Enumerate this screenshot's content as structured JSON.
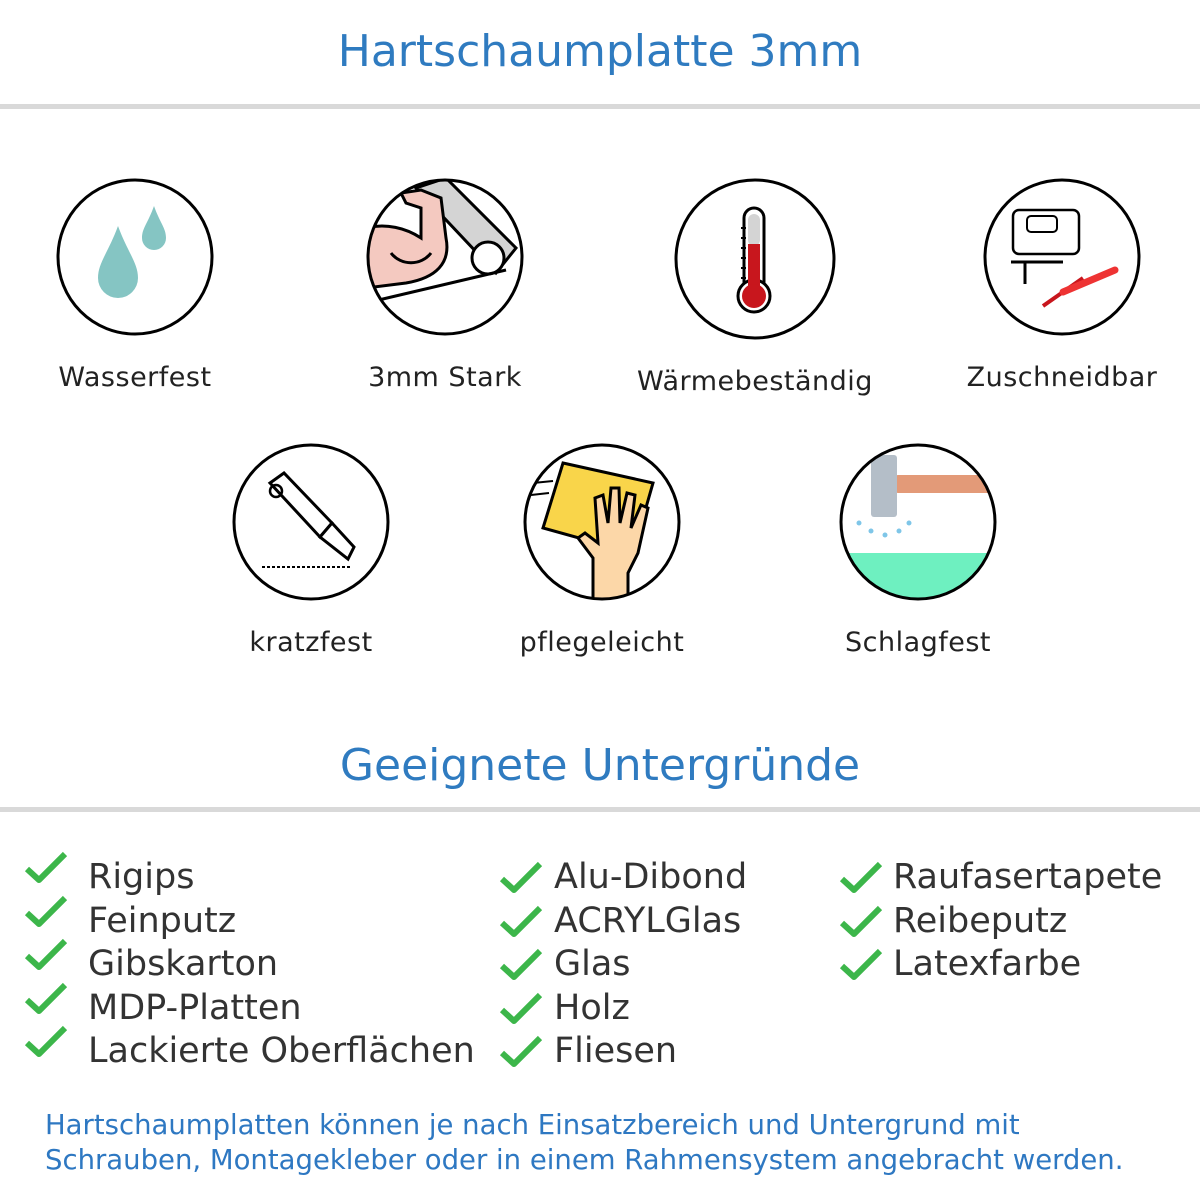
{
  "header": {
    "title": "Hartschaumplatte 3mm"
  },
  "features": [
    {
      "label": "Wasserfest",
      "icon": "water-drops-icon"
    },
    {
      "label": "3mm Stark",
      "icon": "strong-arm-icon"
    },
    {
      "label": "Wärmebeständig",
      "icon": "thermometer-icon"
    },
    {
      "label": "Zuschneidbar",
      "icon": "jigsaw-knife-icon"
    },
    {
      "label": "kratzfest",
      "icon": "cutter-knife-icon"
    },
    {
      "label": "pflegeleicht",
      "icon": "cleaning-sponge-hand-icon"
    },
    {
      "label": "Schlagfest",
      "icon": "hammer-impact-icon"
    }
  ],
  "surfaces": {
    "title": "Geeignete Untergründe",
    "check_color": "#3cb64a",
    "columns": [
      [
        "Rigips",
        "Feinputz",
        "Gibskarton",
        "MDP-Platten",
        "Lackierte Oberflächen"
      ],
      [
        "Alu-Dibond",
        "ACRYLGlas",
        "Glas",
        "Holz",
        "Fliesen"
      ],
      [
        "Raufasertapete",
        "Reibeputz",
        "Latexfarbe"
      ]
    ]
  },
  "footer": {
    "line1": "Hartschaumplatten können je nach Einsatzbereich und Untergrund mit",
    "line2": "Schrauben, Montagekleber oder in einem Rahmensystem angebracht werden."
  },
  "colors": {
    "accent": "#2f7bc0",
    "rule": "#d9d9d9",
    "text": "#333333"
  }
}
